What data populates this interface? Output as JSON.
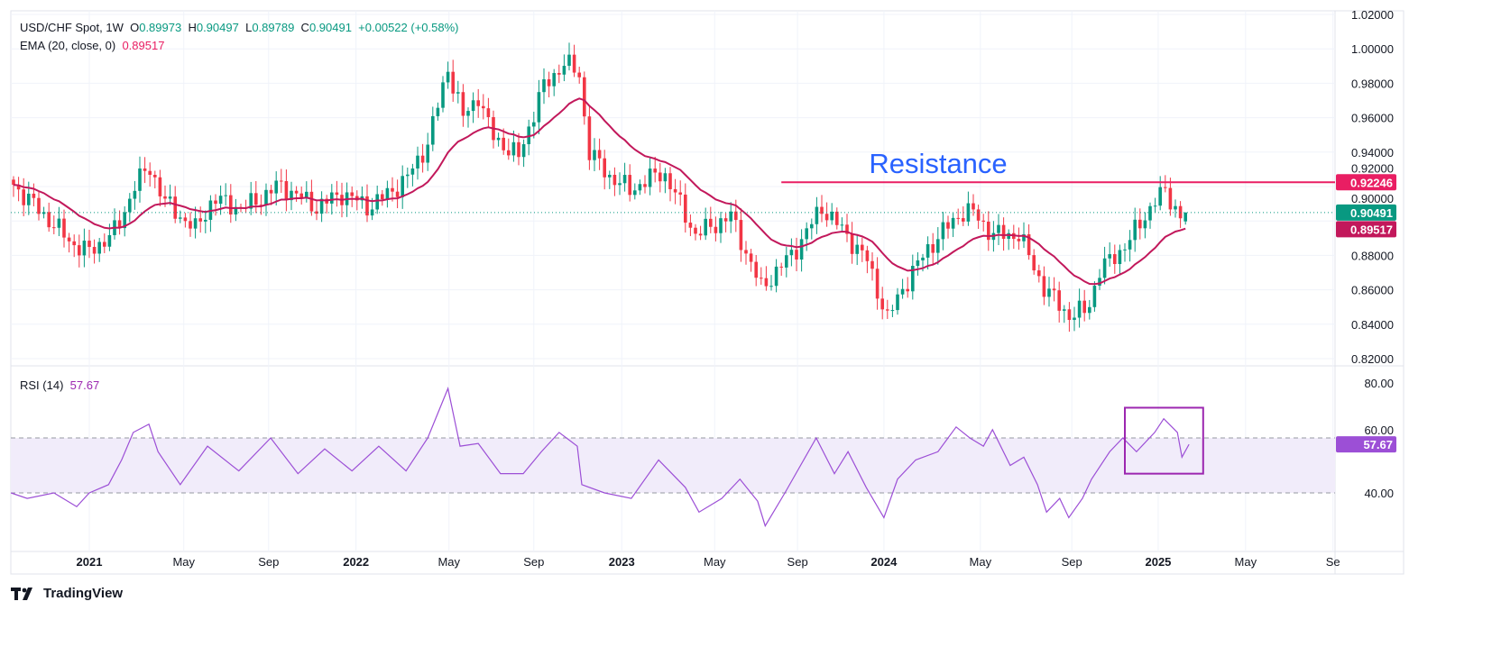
{
  "header": {
    "symbol": "USD/CHF Spot, 1W",
    "open_label": "O",
    "open": "0.89973",
    "high_label": "H",
    "high": "0.90497",
    "low_label": "L",
    "low": "0.89789",
    "close_label": "C",
    "close": "0.90491",
    "change": "+0.00522 (+0.58%)",
    "ema_label": "EMA (20, close, 0)",
    "ema_value": "0.89517",
    "rsi_label": "RSI (14)",
    "rsi_value": "57.67"
  },
  "footer": {
    "brand": "TradingView"
  },
  "colors": {
    "up": "#089981",
    "down": "#f23645",
    "ema": "#c2185b",
    "resistance": "#e91e63",
    "rsi": "#9c4fd6",
    "annotation_text": "#2962ff"
  },
  "chart_data": [
    {
      "type": "candlestick",
      "title": "USD/CHF Spot, 1W",
      "x_unit": "week index (0 = mid-Sep 2020)",
      "x_ticks": [
        {
          "week": 15,
          "label": "2021"
        },
        {
          "week": 33.7,
          "label": "May"
        },
        {
          "week": 50.5,
          "label": "Sep"
        },
        {
          "week": 67.8,
          "label": "2022"
        },
        {
          "week": 86.2,
          "label": "May"
        },
        {
          "week": 103,
          "label": "Sep"
        },
        {
          "week": 120.4,
          "label": "2023"
        },
        {
          "week": 138.8,
          "label": "May"
        },
        {
          "week": 155.2,
          "label": "Sep"
        },
        {
          "week": 172.3,
          "label": "2024"
        },
        {
          "week": 191.4,
          "label": "May"
        },
        {
          "week": 209.5,
          "label": "Sep"
        },
        {
          "week": 226.6,
          "label": "2025"
        },
        {
          "week": 243.9,
          "label": "May"
        },
        {
          "week": 261.2,
          "label": "Se"
        }
      ],
      "y_ticks": [
        "0.82000",
        "0.84000",
        "0.86000",
        "0.88000",
        "0.90000",
        "0.92000",
        "0.94000",
        "0.96000",
        "0.98000",
        "1.00000",
        "1.02000"
      ],
      "ylim": [
        0.815,
        1.025
      ],
      "close_path": [
        [
          0,
          0.921
        ],
        [
          4.5,
          0.908
        ],
        [
          11.6,
          0.887
        ],
        [
          15,
          0.882
        ],
        [
          20.5,
          0.895
        ],
        [
          24,
          0.921
        ],
        [
          27,
          0.931
        ],
        [
          30,
          0.911
        ],
        [
          36,
          0.895
        ],
        [
          39.5,
          0.913
        ],
        [
          45.5,
          0.907
        ],
        [
          52.7,
          0.921
        ],
        [
          60,
          0.908
        ],
        [
          65,
          0.916
        ],
        [
          70.5,
          0.908
        ],
        [
          77.7,
          0.924
        ],
        [
          82,
          0.945
        ],
        [
          86,
          0.989
        ],
        [
          89,
          0.96
        ],
        [
          92,
          0.973
        ],
        [
          94.6,
          0.95
        ],
        [
          100,
          0.937
        ],
        [
          104.5,
          0.976
        ],
        [
          109,
          0.992
        ],
        [
          112.5,
          0.984
        ],
        [
          113.4,
          0.942
        ],
        [
          118,
          0.926
        ],
        [
          122,
          0.918
        ],
        [
          128.6,
          0.929
        ],
        [
          135,
          0.892
        ],
        [
          142,
          0.903
        ],
        [
          148,
          0.861
        ],
        [
          154.5,
          0.882
        ],
        [
          160,
          0.908
        ],
        [
          164,
          0.895
        ],
        [
          169,
          0.877
        ],
        [
          173,
          0.843
        ],
        [
          176,
          0.861
        ],
        [
          181,
          0.884
        ],
        [
          187.5,
          0.905
        ],
        [
          190,
          0.905
        ],
        [
          193.8,
          0.892
        ],
        [
          199,
          0.892
        ],
        [
          204,
          0.861
        ],
        [
          209,
          0.845
        ],
        [
          212.5,
          0.848
        ],
        [
          215,
          0.871
        ],
        [
          220.5,
          0.887
        ],
        [
          225.7,
          0.911
        ],
        [
          228,
          0.917
        ],
        [
          231,
          0.903
        ],
        [
          232,
          0.90491
        ]
      ],
      "last_candle": {
        "open": 0.89973,
        "high": 0.90497,
        "low": 0.89789,
        "close": 0.90491
      },
      "ema": {
        "period": 20,
        "last": 0.89517
      },
      "price_tags": [
        {
          "value": 0.92246,
          "label": "0.92246",
          "kind": "resistance"
        },
        {
          "value": 0.90491,
          "label": "0.90491",
          "kind": "last"
        },
        {
          "value": 0.89517,
          "label": "0.89517",
          "kind": "ema"
        }
      ],
      "resistance": {
        "value": 0.92246,
        "start_week": 152,
        "label": "Resistance"
      }
    },
    {
      "type": "line",
      "title": "RSI (14)",
      "ylim": [
        18,
        86
      ],
      "y_ticks": [
        "80.00",
        "60.00",
        "40.00"
      ],
      "band": [
        40,
        60
      ],
      "last_label": "57.67",
      "highlight_box": {
        "week_from": 220,
        "week_to": 235.5,
        "value_from": 47,
        "value_to": 71
      },
      "points": [
        [
          -0.5,
          40
        ],
        [
          2.7,
          38
        ],
        [
          8,
          40
        ],
        [
          12.5,
          35
        ],
        [
          15,
          40
        ],
        [
          18.8,
          43
        ],
        [
          21.4,
          52
        ],
        [
          23.7,
          62
        ],
        [
          26.8,
          65
        ],
        [
          28.6,
          55
        ],
        [
          33,
          43
        ],
        [
          38.4,
          57
        ],
        [
          44.6,
          48
        ],
        [
          50.9,
          60
        ],
        [
          56.3,
          47
        ],
        [
          61.6,
          56
        ],
        [
          67,
          48
        ],
        [
          72.3,
          57
        ],
        [
          77.7,
          48
        ],
        [
          82,
          60
        ],
        [
          86,
          78
        ],
        [
          88.4,
          57
        ],
        [
          92,
          58
        ],
        [
          96.4,
          47
        ],
        [
          100.9,
          47
        ],
        [
          104.5,
          55
        ],
        [
          108,
          62
        ],
        [
          111.6,
          57
        ],
        [
          112.5,
          43
        ],
        [
          117,
          40
        ],
        [
          122.3,
          38
        ],
        [
          127.7,
          52
        ],
        [
          133,
          42
        ],
        [
          135.7,
          33
        ],
        [
          140.2,
          38
        ],
        [
          143.8,
          45
        ],
        [
          147.3,
          37
        ],
        [
          148.8,
          28
        ],
        [
          152.7,
          40
        ],
        [
          158.9,
          60
        ],
        [
          162.5,
          47
        ],
        [
          165.2,
          55
        ],
        [
          168.8,
          42
        ],
        [
          172.3,
          31
        ],
        [
          175,
          45
        ],
        [
          178.6,
          52
        ],
        [
          183,
          55
        ],
        [
          186.6,
          64
        ],
        [
          189.3,
          60
        ],
        [
          192,
          57
        ],
        [
          193.8,
          63
        ],
        [
          197.3,
          50
        ],
        [
          200,
          53
        ],
        [
          202.7,
          43
        ],
        [
          204.5,
          33
        ],
        [
          207.1,
          38
        ],
        [
          208.9,
          31
        ],
        [
          211.6,
          38
        ],
        [
          213.4,
          45
        ],
        [
          217,
          55
        ],
        [
          219.6,
          60
        ],
        [
          222.3,
          55
        ],
        [
          225.9,
          62
        ],
        [
          227.7,
          67
        ],
        [
          230.4,
          62
        ],
        [
          231.3,
          53
        ],
        [
          232.7,
          57.67
        ]
      ]
    }
  ]
}
